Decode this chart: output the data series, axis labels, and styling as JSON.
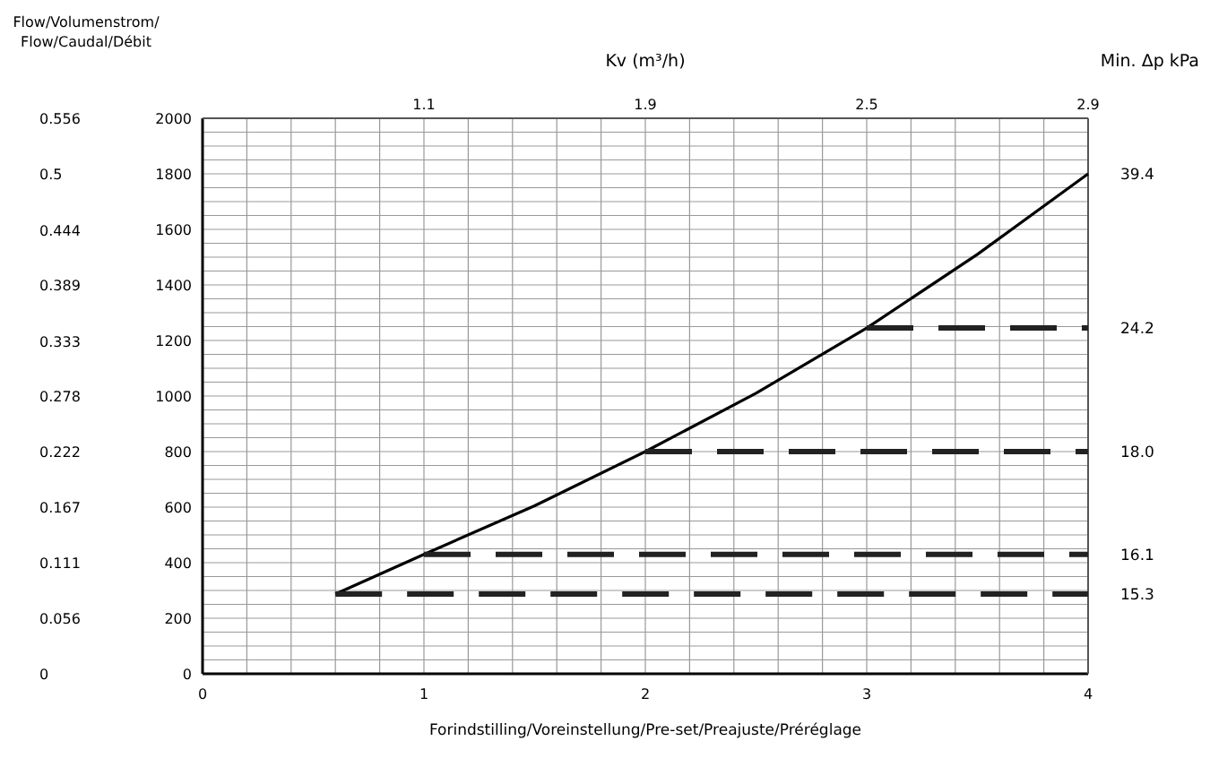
{
  "chart_data": {
    "type": "line",
    "y2label": "Flow/Volumenstrom/\nFlow/Caudal/Débit",
    "xlabel": "Forindstilling/Voreinstellung/Pre-set/Preajuste/Préréglage",
    "x2label": "Kv (m³/h)",
    "xlim": [
      0,
      4
    ],
    "ylim": [
      0,
      2000
    ],
    "xticks": [
      0,
      {
        "value": 0.2,
        "label": null
      },
      {
        "value": 0.4,
        "label": null
      },
      {
        "value": 0.6,
        "label": null
      },
      {
        "value": 0.8,
        "label": null
      },
      1,
      {
        "value": 1.2,
        "label": null
      },
      {
        "value": 1.4,
        "label": null
      },
      {
        "value": 1.6,
        "label": null
      },
      {
        "value": 1.8,
        "label": null
      },
      2,
      {
        "value": 2.2,
        "label": null
      },
      {
        "value": 2.4,
        "label": null
      },
      {
        "value": 2.6,
        "label": null
      },
      {
        "value": 2.8,
        "label": null
      },
      3,
      {
        "value": 3.2,
        "label": null
      },
      {
        "value": 3.4,
        "label": null
      },
      {
        "value": 3.6,
        "label": null
      },
      {
        "value": 3.8,
        "label": null
      },
      4
    ],
    "yticks": [
      0,
      {
        "value": 50,
        "label": null
      },
      {
        "value": 100,
        "label": null
      },
      {
        "value": 150,
        "label": null
      },
      200,
      {
        "value": 250,
        "label": null
      },
      {
        "value": 300,
        "label": null
      },
      {
        "value": 350,
        "label": null
      },
      400,
      {
        "value": 450,
        "label": null
      },
      {
        "value": 500,
        "label": null
      },
      {
        "value": 550,
        "label": null
      },
      600,
      {
        "value": 650,
        "label": null
      },
      {
        "value": 700,
        "label": null
      },
      {
        "value": 750,
        "label": null
      },
      800,
      {
        "value": 850,
        "label": null
      },
      {
        "value": 900,
        "label": null
      },
      {
        "value": 950,
        "label": null
      },
      1000,
      {
        "value": 1050,
        "label": null
      },
      {
        "value": 1100,
        "label": null
      },
      {
        "value": 1150,
        "label": null
      },
      1200,
      {
        "value": 1250,
        "label": null
      },
      {
        "value": 1300,
        "label": null
      },
      {
        "value": 1350,
        "label": null
      },
      1400,
      {
        "value": 1450,
        "label": null
      },
      {
        "value": 1500,
        "label": null
      },
      {
        "value": 1550,
        "label": null
      },
      1600,
      {
        "value": 1650,
        "label": null
      },
      {
        "value": 1700,
        "label": null
      },
      {
        "value": 1750,
        "label": null
      },
      1800,
      {
        "value": 1850,
        "label": null
      },
      {
        "value": 1900,
        "label": null
      },
      {
        "value": 1950,
        "label": null
      },
      2000
    ],
    "y2lim": [
      0,
      0.556
    ],
    "y2ticks": [
      0,
      0.056,
      0.111,
      0.167,
      0.222,
      0.278,
      0.333,
      0.389,
      0.444,
      0.5,
      0.556
    ],
    "grid": true,
    "series": [
      {
        "color": "#000000",
        "line_style": "solid",
        "x": [
          0.6,
          1,
          1.5,
          2,
          2.5,
          3,
          3.5,
          4
        ],
        "values": [
          287,
          430,
          605,
          800,
          1010,
          1245,
          1510,
          1800
        ]
      },
      {
        "color": "#222222",
        "line_style": "dashed",
        "x": [
          3,
          4
        ],
        "values": [
          1245,
          1245
        ]
      },
      {
        "color": "#222222",
        "line_style": "dashed",
        "x": [
          2,
          4
        ],
        "values": [
          800,
          800
        ]
      },
      {
        "color": "#222222",
        "line_style": "dashed",
        "x": [
          1,
          4
        ],
        "values": [
          430,
          430
        ]
      },
      {
        "color": "#222222",
        "line_style": "dashed",
        "x": [
          0.6,
          4
        ],
        "values": [
          287,
          287
        ]
      }
    ],
    "annotations": [
      "Min. Δp kPa",
      "1.1",
      "1.9",
      "2.5",
      "2.9",
      "39.4",
      "24.2",
      "18.0",
      "16.1",
      "15.3"
    ]
  }
}
